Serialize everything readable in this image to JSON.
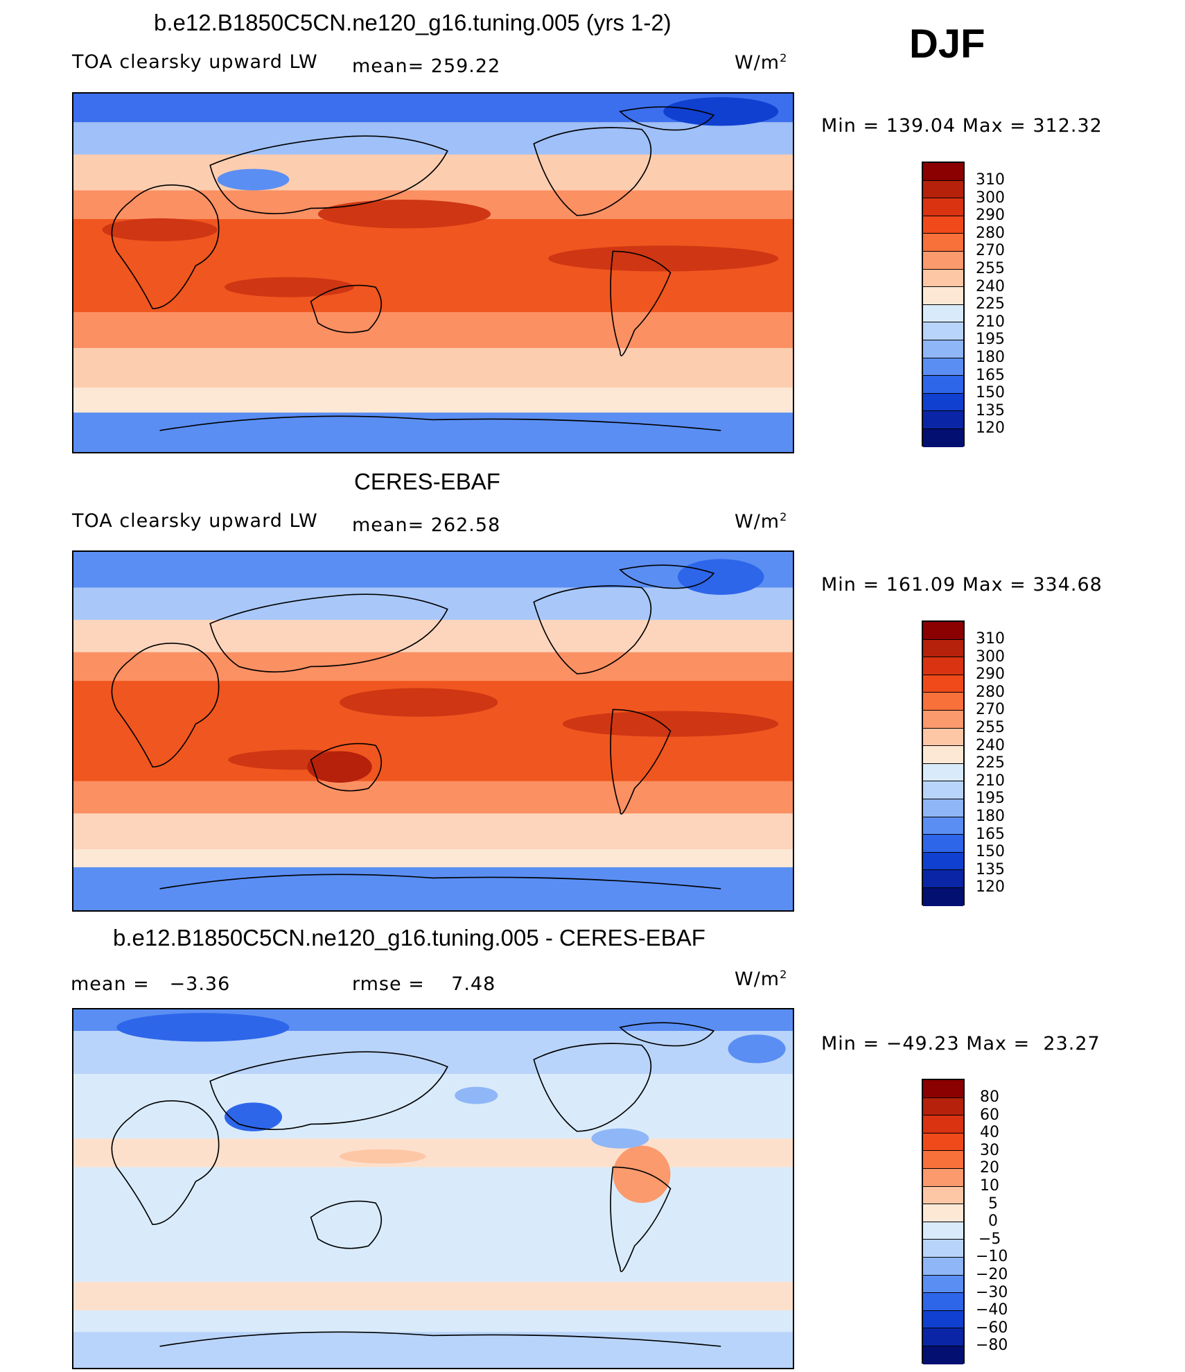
{
  "season": "DJF",
  "panels": [
    {
      "title": "b.e12.B1850C5CN.ne120_g16.tuning.005 (yrs 1-2)",
      "left_label": "TOA clearsky upward LW",
      "mid_label": "mean= 259.22",
      "units": "W/m",
      "units_sup": "2",
      "stats": "Min = 139.04 Max = 312.32",
      "levels": [
        "310",
        "300",
        "290",
        "280",
        "270",
        "255",
        "240",
        "225",
        "210",
        "195",
        "180",
        "165",
        "150",
        "135",
        "120"
      ],
      "colors": [
        "#8b0000",
        "#b5210b",
        "#d93312",
        "#f04a1a",
        "#f8703a",
        "#fb9a6c",
        "#fdc7a6",
        "#fde8d6",
        "#d9ebfb",
        "#b9d4fa",
        "#8fb6f7",
        "#5a8ef3",
        "#2e66ea",
        "#1040d0",
        "#0a26a6",
        "#040f72"
      ],
      "map_colors": {
        "polar": "#3b6fee",
        "subpolar": "#9fc0f8",
        "mid": "#fdcdb0",
        "subtrop": "#fb9063",
        "trop": "#f0561f",
        "core": "#cf3613"
      }
    },
    {
      "title": "CERES-EBAF",
      "left_label": "TOA clearsky upward LW",
      "mid_label": "mean= 262.58",
      "units": "W/m",
      "units_sup": "2",
      "stats": "Min = 161.09 Max = 334.68",
      "levels": [
        "310",
        "300",
        "290",
        "280",
        "270",
        "255",
        "240",
        "225",
        "210",
        "195",
        "180",
        "165",
        "150",
        "135",
        "120"
      ],
      "colors": [
        "#8b0000",
        "#b5210b",
        "#d93312",
        "#f04a1a",
        "#f8703a",
        "#fb9a6c",
        "#fdc7a6",
        "#fde8d6",
        "#d9ebfb",
        "#b9d4fa",
        "#8fb6f7",
        "#5a8ef3",
        "#2e66ea",
        "#1040d0",
        "#0a26a6",
        "#040f72"
      ],
      "map_colors": {
        "polar": "#5a8ef3",
        "subpolar": "#a9c8f9",
        "mid": "#fdd5bd",
        "subtrop": "#fb9063",
        "trop": "#f0561f",
        "core": "#cf3613"
      }
    },
    {
      "title": "b.e12.B1850C5CN.ne120_g16.tuning.005 - CERES-EBAF",
      "left_label": "mean =   −3.36",
      "mid_label": "rmse =    7.48",
      "units": "W/m",
      "units_sup": "2",
      "stats": "Min = −49.23 Max =  23.27",
      "levels": [
        "80",
        "60",
        "40",
        "30",
        "20",
        "10",
        "5",
        "0",
        "−5",
        "−10",
        "−20",
        "−30",
        "−40",
        "−60",
        "−80"
      ],
      "colors": [
        "#8b0000",
        "#b5210b",
        "#d93312",
        "#f04a1a",
        "#f8703a",
        "#fb9a6c",
        "#fdc7a6",
        "#fde8d6",
        "#d9ebfb",
        "#b9d4fa",
        "#8fb6f7",
        "#5a8ef3",
        "#2e66ea",
        "#1040d0",
        "#0a26a6",
        "#040f72"
      ],
      "map_colors": {
        "polar": "#5a8ef3",
        "subpolar": "#b9d4fa",
        "mid": "#d9ebfb",
        "subtrop": "#fde0cc",
        "trop": "#d9ebfb",
        "core": "#fb9a6c"
      }
    }
  ]
}
